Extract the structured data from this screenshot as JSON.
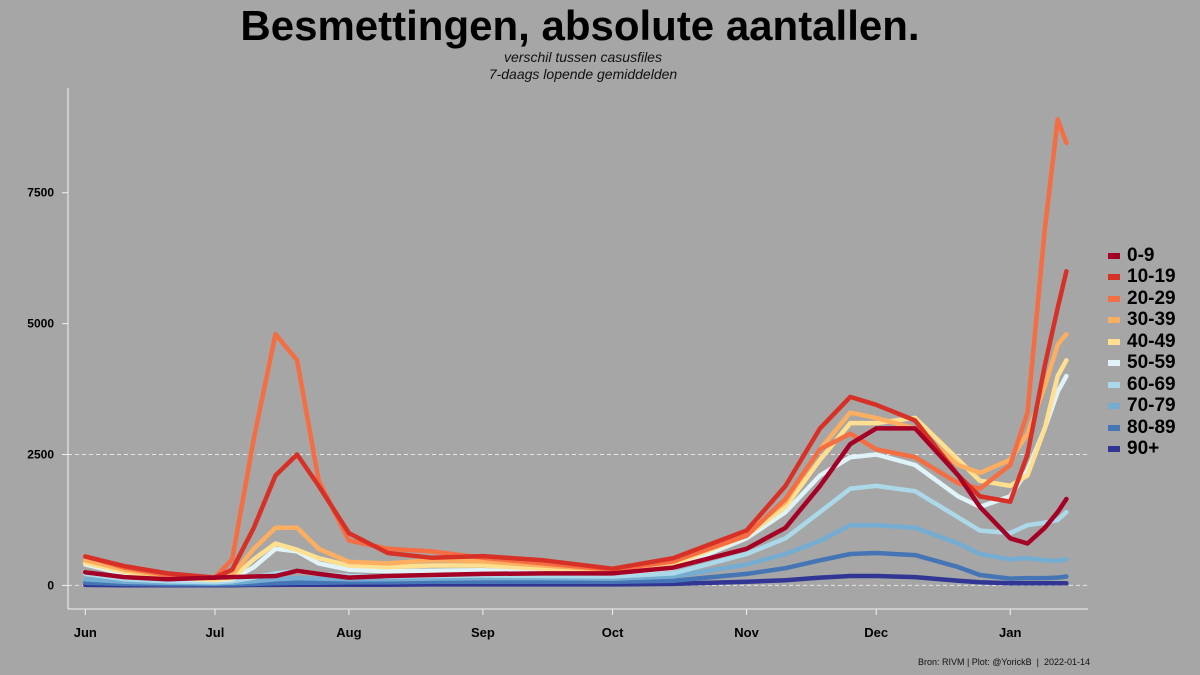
{
  "header": {
    "title": "Besmettingen, absolute aantallen.",
    "subtitle_line1": "verschil tussen casusfiles",
    "subtitle_line2": "7-daags lopende gemiddelden"
  },
  "caption": "Bron: RIVM | Plot: @YorickB  |  2022-01-14",
  "chart_data": {
    "type": "line",
    "title": "Besmettingen, absolute aantallen.",
    "xlabel": "",
    "ylabel": "",
    "x_ticks": [
      "Jun",
      "Jul",
      "Aug",
      "Sep",
      "Oct",
      "Nov",
      "Dec",
      "Jan"
    ],
    "x_tick_dates": [
      "2021-06-01",
      "2021-07-01",
      "2021-08-01",
      "2021-09-01",
      "2021-10-01",
      "2021-11-01",
      "2021-12-01",
      "2022-01-01"
    ],
    "x_range": [
      "2021-05-28",
      "2022-01-19"
    ],
    "y_ticks": [
      0,
      2500,
      5000,
      7500
    ],
    "y_tick_labels": [
      "0",
      "2500",
      "5000",
      "7500"
    ],
    "ylim": [
      -450,
      9500
    ],
    "grid": "horizontal-dashed-at-0-and-2500",
    "legend_position": "right",
    "x": [
      "2021-06-01",
      "2021-06-10",
      "2021-06-20",
      "2021-07-01",
      "2021-07-05",
      "2021-07-10",
      "2021-07-15",
      "2021-07-20",
      "2021-07-25",
      "2021-08-01",
      "2021-08-10",
      "2021-08-20",
      "2021-09-01",
      "2021-09-15",
      "2021-10-01",
      "2021-10-15",
      "2021-11-01",
      "2021-11-10",
      "2021-11-18",
      "2021-11-25",
      "2021-12-01",
      "2021-12-10",
      "2021-12-20",
      "2021-12-25",
      "2022-01-01",
      "2022-01-05",
      "2022-01-09",
      "2022-01-12",
      "2022-01-14"
    ],
    "series": [
      {
        "name": "0-9",
        "color": "#a50026",
        "values": [
          250,
          160,
          120,
          150,
          160,
          170,
          180,
          280,
          220,
          150,
          180,
          200,
          220,
          230,
          230,
          340,
          700,
          1100,
          1900,
          2700,
          3000,
          3000,
          2100,
          1500,
          900,
          800,
          1100,
          1400,
          1650
        ]
      },
      {
        "name": "10-19",
        "color": "#d73027",
        "values": [
          550,
          370,
          230,
          150,
          300,
          1100,
          2100,
          2500,
          1900,
          1000,
          620,
          530,
          560,
          480,
          320,
          520,
          1050,
          1900,
          3000,
          3600,
          3450,
          3150,
          2100,
          1700,
          1600,
          2500,
          4200,
          5300,
          6000
        ]
      },
      {
        "name": "20-29",
        "color": "#f46d43",
        "values": [
          560,
          340,
          200,
          150,
          500,
          2800,
          4800,
          4300,
          2000,
          860,
          700,
          650,
          530,
          420,
          300,
          460,
          950,
          1650,
          2600,
          2900,
          2600,
          2450,
          1950,
          1850,
          2300,
          3300,
          6800,
          8900,
          8450
        ]
      },
      {
        "name": "30-39",
        "color": "#fdae61",
        "values": [
          480,
          300,
          170,
          140,
          200,
          700,
          1100,
          1100,
          700,
          450,
          420,
          480,
          460,
          380,
          290,
          450,
          1000,
          1600,
          2600,
          3300,
          3200,
          3000,
          2300,
          2150,
          2400,
          2900,
          3800,
          4600,
          4800
        ]
      },
      {
        "name": "40-49",
        "color": "#fee090",
        "values": [
          430,
          260,
          150,
          110,
          140,
          500,
          800,
          680,
          520,
          380,
          350,
          380,
          380,
          320,
          260,
          400,
          950,
          1500,
          2400,
          3100,
          3100,
          3200,
          2400,
          2000,
          1900,
          2100,
          3000,
          4000,
          4300
        ]
      },
      {
        "name": "50-59",
        "color": "#e0f3f8",
        "values": [
          400,
          220,
          130,
          100,
          120,
          350,
          700,
          650,
          420,
          300,
          270,
          280,
          290,
          260,
          230,
          330,
          900,
          1400,
          2100,
          2450,
          2500,
          2300,
          1700,
          1500,
          1700,
          2200,
          3000,
          3700,
          4000
        ]
      },
      {
        "name": "60-69",
        "color": "#abd9e9",
        "values": [
          220,
          120,
          80,
          60,
          80,
          150,
          230,
          270,
          220,
          180,
          170,
          180,
          190,
          180,
          170,
          230,
          600,
          900,
          1400,
          1850,
          1900,
          1800,
          1300,
          1050,
          1000,
          1150,
          1200,
          1250,
          1400
        ]
      },
      {
        "name": "70-79",
        "color": "#74add1",
        "values": [
          120,
          70,
          50,
          40,
          50,
          80,
          120,
          140,
          130,
          120,
          120,
          130,
          140,
          140,
          130,
          170,
          400,
          600,
          850,
          1150,
          1150,
          1100,
          800,
          600,
          500,
          520,
          480,
          470,
          500
        ]
      },
      {
        "name": "80-89",
        "color": "#4575b4",
        "values": [
          50,
          30,
          20,
          20,
          20,
          30,
          40,
          50,
          50,
          60,
          60,
          70,
          70,
          70,
          70,
          90,
          220,
          330,
          480,
          600,
          620,
          580,
          350,
          200,
          130,
          140,
          140,
          150,
          170
        ]
      },
      {
        "name": "90+",
        "color": "#313695",
        "values": [
          10,
          5,
          5,
          5,
          5,
          10,
          10,
          15,
          15,
          15,
          15,
          20,
          20,
          20,
          20,
          30,
          70,
          100,
          150,
          180,
          180,
          160,
          90,
          60,
          40,
          40,
          40,
          40,
          40
        ]
      }
    ]
  }
}
